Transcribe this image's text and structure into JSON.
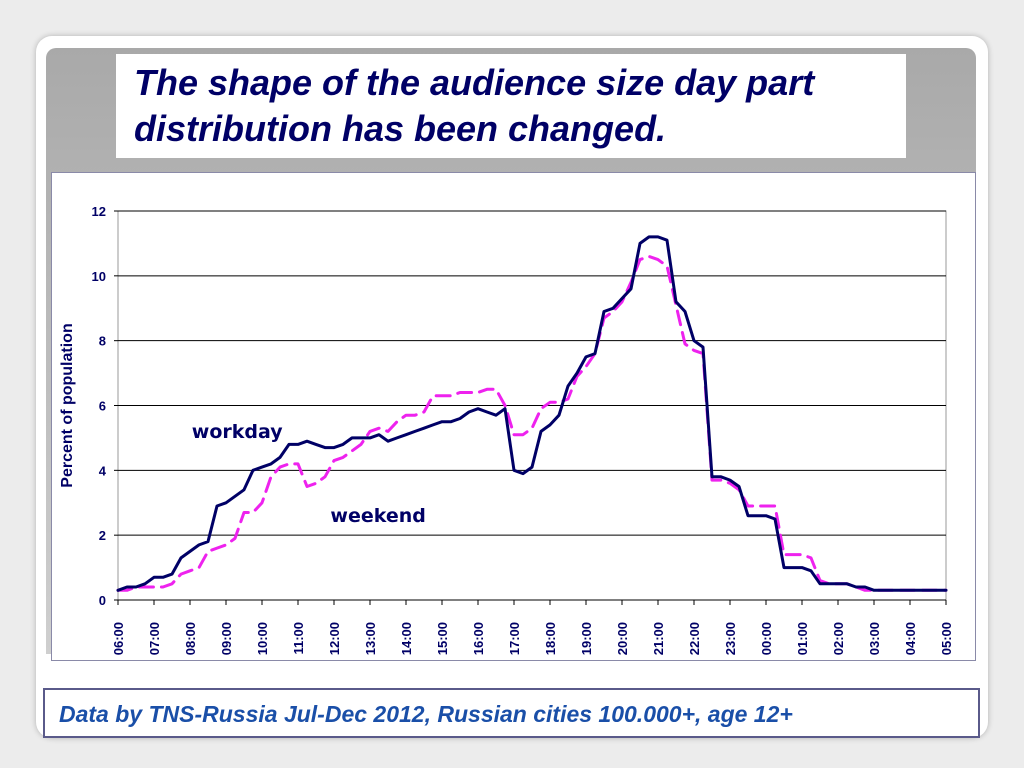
{
  "title": "The shape of the audience size day part distribution has been changed.",
  "caption": "Data by TNS-Russia Jul-Dec 2012, Russian cities 100.000+, age 12+",
  "colors": {
    "title": "#000066",
    "caption": "#1a4fa8",
    "workday": "#000066",
    "weekend": "#ee22ee",
    "ylabel": "#000066"
  },
  "chart_data": {
    "type": "line",
    "title": "",
    "xlabel": "",
    "ylabel": "Percent of population",
    "ylim": [
      0,
      12
    ],
    "yticks": [
      "0",
      "2",
      "4",
      "6",
      "8",
      "10",
      "12"
    ],
    "xticks": [
      "06:00",
      "07:00",
      "08:00",
      "09:00",
      "10:00",
      "11:00",
      "12:00",
      "13:00",
      "14:00",
      "15:00",
      "16:00",
      "17:00",
      "18:00",
      "19:00",
      "20:00",
      "21:00",
      "22:00",
      "23:00",
      "00:00",
      "01:00",
      "02:00",
      "03:00",
      "04:00",
      "05:00"
    ],
    "grid": true,
    "legend": "inline labels",
    "series": [
      {
        "name": "workday",
        "style": "solid",
        "x": [
          0,
          0.25,
          0.5,
          0.75,
          1,
          1.25,
          1.5,
          1.75,
          2,
          2.25,
          2.5,
          2.75,
          3,
          3.25,
          3.5,
          3.75,
          4,
          4.25,
          4.5,
          4.75,
          5,
          5.25,
          5.5,
          5.75,
          6,
          6.25,
          6.5,
          6.75,
          7,
          7.25,
          7.5,
          7.75,
          8,
          8.25,
          8.5,
          8.75,
          9,
          9.25,
          9.5,
          9.75,
          10,
          10.25,
          10.5,
          10.75,
          11,
          11.25,
          11.5,
          11.75,
          12,
          12.25,
          12.5,
          12.75,
          13,
          13.25,
          13.5,
          13.75,
          14,
          14.25,
          14.5,
          14.75,
          15,
          15.25,
          15.5,
          15.75,
          16,
          16.25,
          16.5,
          16.75,
          17,
          17.25,
          17.5,
          17.75,
          18,
          18.25,
          18.5,
          18.75,
          19,
          19.25,
          19.5,
          19.75,
          20,
          20.25,
          20.5,
          20.75,
          21,
          21.25,
          21.5,
          21.75,
          22,
          22.25,
          22.5,
          22.75,
          23
        ],
        "values": [
          0.3,
          0.4,
          0.4,
          0.5,
          0.7,
          0.7,
          0.8,
          1.3,
          1.5,
          1.7,
          1.8,
          2.9,
          3.0,
          3.2,
          3.4,
          4.0,
          4.1,
          4.2,
          4.4,
          4.8,
          4.8,
          4.9,
          4.8,
          4.7,
          4.7,
          4.8,
          5.0,
          5.0,
          5.0,
          5.1,
          4.9,
          5.0,
          5.1,
          5.2,
          5.3,
          5.4,
          5.5,
          5.5,
          5.6,
          5.8,
          5.9,
          5.8,
          5.7,
          5.9,
          4.0,
          3.9,
          4.1,
          5.2,
          5.4,
          5.7,
          6.6,
          7.0,
          7.5,
          7.6,
          8.9,
          9.0,
          9.3,
          9.6,
          11.0,
          11.2,
          11.2,
          11.1,
          9.2,
          8.9,
          8.0,
          7.8,
          3.8,
          3.8,
          3.7,
          3.5,
          2.6,
          2.6,
          2.6,
          2.5,
          1.0,
          1.0,
          1.0,
          0.9,
          0.5,
          0.5,
          0.5,
          0.5,
          0.4,
          0.4,
          0.3,
          0.3,
          0.3,
          0.3,
          0.3,
          0.3,
          0.3,
          0.3,
          0.3
        ],
        "label_at": [
          2.05,
          5.0
        ]
      },
      {
        "name": "weekend",
        "style": "dashed",
        "x": [
          0,
          0.25,
          0.5,
          0.75,
          1,
          1.25,
          1.5,
          1.75,
          2,
          2.25,
          2.5,
          2.75,
          3,
          3.25,
          3.5,
          3.75,
          4,
          4.25,
          4.5,
          4.75,
          5,
          5.25,
          5.5,
          5.75,
          6,
          6.25,
          6.5,
          6.75,
          7,
          7.25,
          7.5,
          7.75,
          8,
          8.25,
          8.5,
          8.75,
          9,
          9.25,
          9.5,
          9.75,
          10,
          10.25,
          10.5,
          10.75,
          11,
          11.25,
          11.5,
          11.75,
          12,
          12.25,
          12.5,
          12.75,
          13,
          13.25,
          13.5,
          13.75,
          14,
          14.25,
          14.5,
          14.75,
          15,
          15.25,
          15.5,
          15.75,
          16,
          16.25,
          16.5,
          16.75,
          17,
          17.25,
          17.5,
          17.75,
          18,
          18.25,
          18.5,
          18.75,
          19,
          19.25,
          19.5,
          19.75,
          20,
          20.25,
          20.5,
          20.75,
          21,
          21.25,
          21.5,
          21.75,
          22,
          22.25,
          22.5,
          22.75,
          23
        ],
        "values": [
          0.3,
          0.3,
          0.4,
          0.4,
          0.4,
          0.4,
          0.5,
          0.8,
          0.9,
          1.0,
          1.5,
          1.6,
          1.7,
          1.9,
          2.7,
          2.7,
          3.0,
          3.8,
          4.1,
          4.2,
          4.2,
          3.5,
          3.6,
          3.8,
          4.3,
          4.4,
          4.6,
          4.8,
          5.2,
          5.3,
          5.2,
          5.5,
          5.7,
          5.7,
          5.8,
          6.3,
          6.3,
          6.3,
          6.4,
          6.4,
          6.4,
          6.5,
          6.5,
          6.0,
          5.1,
          5.1,
          5.3,
          5.9,
          6.1,
          6.1,
          6.2,
          6.9,
          7.2,
          7.6,
          8.7,
          8.9,
          9.2,
          9.8,
          10.5,
          10.6,
          10.5,
          10.3,
          9.1,
          7.9,
          7.7,
          7.6,
          3.7,
          3.7,
          3.6,
          3.4,
          2.9,
          2.9,
          2.9,
          2.9,
          1.4,
          1.4,
          1.4,
          1.3,
          0.6,
          0.5,
          0.5,
          0.5,
          0.4,
          0.3,
          0.3,
          0.3,
          0.3,
          0.3,
          0.3,
          0.3,
          0.3,
          0.3,
          0.3
        ],
        "label_at": [
          5.9,
          2.4
        ]
      }
    ]
  }
}
